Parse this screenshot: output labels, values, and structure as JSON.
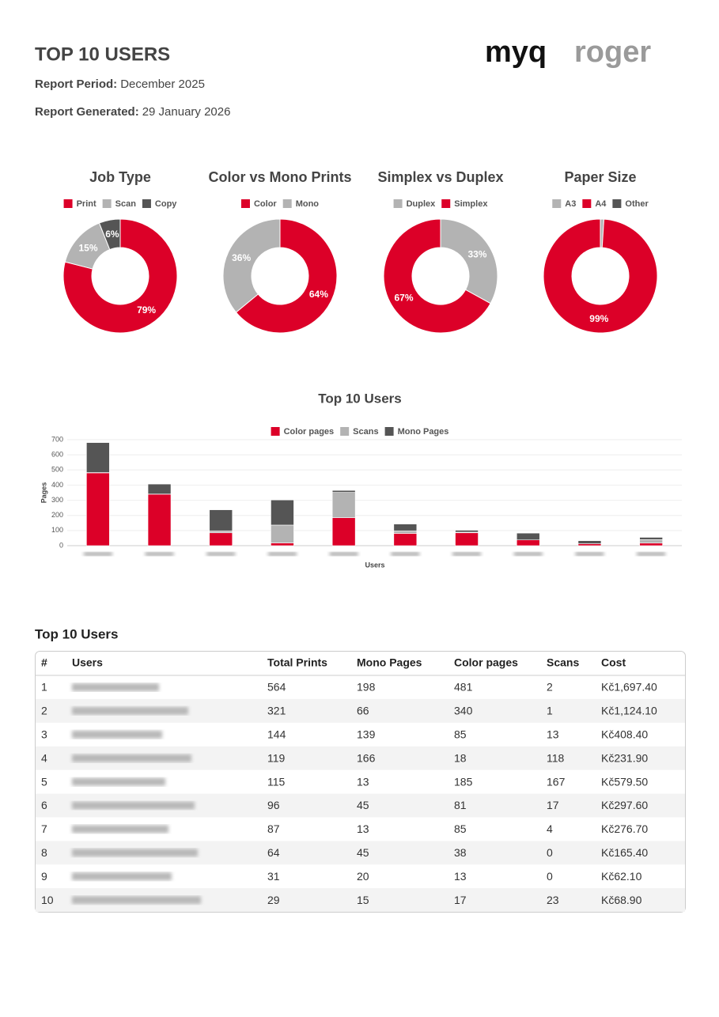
{
  "header": {
    "title": "TOP 10 USERS",
    "period_label": "Report Period:",
    "period": "December 2025",
    "generated_label": "Report Generated:",
    "generated": "29 January 2026",
    "logo_left": "myq",
    "logo_right": "roger"
  },
  "chart_data": [
    {
      "type": "pie",
      "title": "Job Type",
      "categories": [
        "Print",
        "Scan",
        "Copy"
      ],
      "values": [
        79,
        15,
        6
      ],
      "value_labels": [
        "79%",
        "15%",
        "6%"
      ],
      "colors": [
        "#dc0028",
        "#b3b3b3",
        "#555555"
      ]
    },
    {
      "type": "pie",
      "title": "Color vs Mono Prints",
      "categories": [
        "Color",
        "Mono"
      ],
      "values": [
        64,
        36
      ],
      "value_labels": [
        "64%",
        "36%"
      ],
      "colors": [
        "#dc0028",
        "#b3b3b3"
      ]
    },
    {
      "type": "pie",
      "title": "Simplex vs Duplex",
      "categories": [
        "Duplex",
        "Simplex"
      ],
      "values": [
        33,
        67
      ],
      "value_labels": [
        "33%",
        "67%"
      ],
      "colors": [
        "#b3b3b3",
        "#dc0028"
      ]
    },
    {
      "type": "pie",
      "title": "Paper Size",
      "categories": [
        "A3",
        "A4",
        "Other"
      ],
      "values": [
        1,
        99,
        0
      ],
      "value_labels": [
        null,
        "99%",
        null
      ],
      "colors": [
        "#b3b3b3",
        "#dc0028",
        "#555555"
      ]
    },
    {
      "type": "stacked_bar",
      "title": "Top 10 Users",
      "xlabel": "Users",
      "ylabel": "Pages",
      "categories": [
        null,
        null,
        null,
        null,
        null,
        null,
        null,
        null,
        null,
        null
      ],
      "series": [
        {
          "name": "Color pages",
          "color": "#dc0028",
          "values": [
            481,
            340,
            85,
            18,
            185,
            81,
            85,
            38,
            13,
            17
          ]
        },
        {
          "name": "Scans",
          "color": "#b3b3b3",
          "values": [
            2,
            1,
            13,
            118,
            167,
            17,
            4,
            0,
            0,
            23
          ]
        },
        {
          "name": "Mono Pages",
          "color": "#555555",
          "values": [
            198,
            66,
            139,
            166,
            13,
            45,
            13,
            45,
            20,
            15
          ]
        }
      ],
      "ylim": [
        0,
        700
      ],
      "yticks": [
        0,
        100,
        200,
        300,
        400,
        500,
        600,
        700
      ],
      "grid": true
    }
  ],
  "table": {
    "title": "Top 10 Users",
    "columns": [
      "#",
      "Users",
      "Total Prints",
      "Mono Pages",
      "Color pages",
      "Scans",
      "Cost"
    ],
    "rows": [
      [
        1,
        null,
        564,
        198,
        481,
        2,
        "Kč1,697.40"
      ],
      [
        2,
        null,
        321,
        66,
        340,
        1,
        "Kč1,124.10"
      ],
      [
        3,
        null,
        144,
        139,
        85,
        13,
        "Kč408.40"
      ],
      [
        4,
        null,
        119,
        166,
        18,
        118,
        "Kč231.90"
      ],
      [
        5,
        null,
        115,
        13,
        185,
        167,
        "Kč579.50"
      ],
      [
        6,
        null,
        96,
        45,
        81,
        17,
        "Kč297.60"
      ],
      [
        7,
        null,
        87,
        13,
        85,
        4,
        "Kč276.70"
      ],
      [
        8,
        null,
        64,
        45,
        38,
        0,
        "Kč165.40"
      ],
      [
        9,
        null,
        31,
        20,
        13,
        0,
        "Kč62.10"
      ],
      [
        10,
        null,
        29,
        15,
        17,
        23,
        "Kč68.90"
      ]
    ]
  }
}
